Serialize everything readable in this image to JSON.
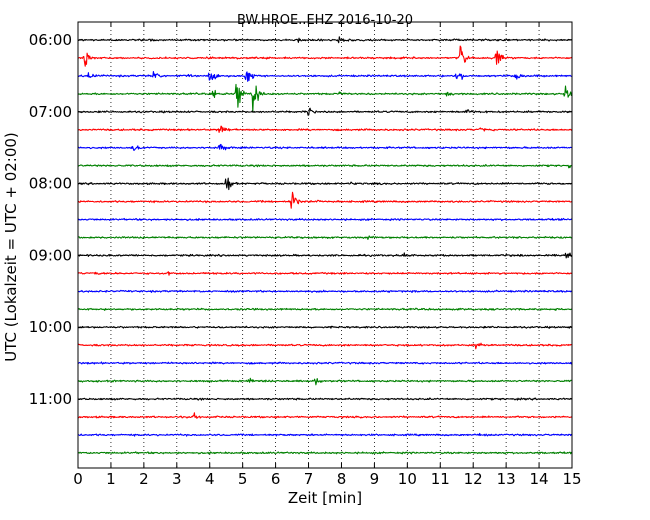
{
  "chart_data": {
    "type": "line",
    "title": "BW.HROE..EHZ 2016-10-20",
    "xlabel": "Zeit  [min]",
    "ylabel": "UTC (Lokalzeit = UTC + 02:00)",
    "xlim": [
      0,
      15
    ],
    "x_ticks": [
      "0",
      "1",
      "2",
      "3",
      "4",
      "5",
      "6",
      "7",
      "8",
      "9",
      "10",
      "11",
      "12",
      "13",
      "14",
      "15"
    ],
    "hour_labels": [
      {
        "label": "06:00",
        "trace_index": 0
      },
      {
        "label": "07:00",
        "trace_index": 4
      },
      {
        "label": "08:00",
        "trace_index": 8
      },
      {
        "label": "09:00",
        "trace_index": 12
      },
      {
        "label": "10:00",
        "trace_index": 16
      },
      {
        "label": "11:00",
        "trace_index": 20
      }
    ],
    "grid": "vertical-dotted",
    "colors": [
      "#000000",
      "#ff0000",
      "#0000ff",
      "#008000"
    ],
    "series": [
      {
        "start": "06:00",
        "color": "#000000",
        "events": [
          {
            "t": 6.7,
            "amp": 0.4
          },
          {
            "t": 7.9,
            "amp": 0.5
          }
        ]
      },
      {
        "start": "06:15",
        "color": "#ff0000",
        "events": [
          {
            "t": 0.2,
            "amp": 1.8
          },
          {
            "t": 11.6,
            "amp": 2.5
          },
          {
            "t": 12.7,
            "amp": 1.6
          }
        ]
      },
      {
        "start": "06:30",
        "color": "#0000ff",
        "events": [
          {
            "t": 0.3,
            "amp": 0.8
          },
          {
            "t": 2.3,
            "amp": 0.9
          },
          {
            "t": 3.3,
            "amp": 0.4
          },
          {
            "t": 4.0,
            "amp": 1.5
          },
          {
            "t": 5.1,
            "amp": 1.8
          },
          {
            "t": 11.5,
            "amp": 1.5
          },
          {
            "t": 13.3,
            "amp": 1.0
          }
        ]
      },
      {
        "start": "06:45",
        "color": "#008000",
        "events": [
          {
            "t": 4.1,
            "amp": 1.0
          },
          {
            "t": 4.8,
            "amp": 2.6
          },
          {
            "t": 5.3,
            "amp": 3.0
          },
          {
            "t": 7.9,
            "amp": 0.5
          },
          {
            "t": 11.2,
            "amp": 0.6
          },
          {
            "t": 14.8,
            "amp": 1.4
          }
        ]
      },
      {
        "start": "07:00",
        "color": "#000000",
        "events": [
          {
            "t": 7.0,
            "amp": 0.7
          },
          {
            "t": 11.8,
            "amp": 0.6
          }
        ]
      },
      {
        "start": "07:15",
        "color": "#ff0000",
        "events": [
          {
            "t": 4.3,
            "amp": 1.6
          },
          {
            "t": 12.2,
            "amp": 0.5
          }
        ]
      },
      {
        "start": "07:30",
        "color": "#0000ff",
        "events": [
          {
            "t": 1.7,
            "amp": 0.7
          },
          {
            "t": 4.3,
            "amp": 0.9
          }
        ]
      },
      {
        "start": "07:45",
        "color": "#008000",
        "events": [
          {
            "t": 14.9,
            "amp": 0.3
          }
        ]
      },
      {
        "start": "08:00",
        "color": "#000000",
        "events": [
          {
            "t": 4.5,
            "amp": 1.4
          },
          {
            "t": 8.3,
            "amp": 0.3
          }
        ]
      },
      {
        "start": "08:15",
        "color": "#ff0000",
        "events": [
          {
            "t": 6.5,
            "amp": 2.5
          },
          {
            "t": 7.3,
            "amp": 0.3
          }
        ]
      },
      {
        "start": "08:30",
        "color": "#0000ff",
        "events": []
      },
      {
        "start": "08:45",
        "color": "#008000",
        "events": [
          {
            "t": 8.8,
            "amp": 0.4
          }
        ]
      },
      {
        "start": "09:00",
        "color": "#000000",
        "events": [
          {
            "t": 9.9,
            "amp": 0.5
          },
          {
            "t": 12.9,
            "amp": 0.3
          },
          {
            "t": 14.8,
            "amp": 0.8
          }
        ]
      },
      {
        "start": "09:15",
        "color": "#ff0000",
        "events": [
          {
            "t": 0.5,
            "amp": 0.3
          },
          {
            "t": 2.7,
            "amp": 0.5
          }
        ]
      },
      {
        "start": "09:30",
        "color": "#0000ff",
        "events": []
      },
      {
        "start": "09:45",
        "color": "#008000",
        "events": []
      },
      {
        "start": "10:00",
        "color": "#000000",
        "events": [
          {
            "t": 14.8,
            "amp": 0.2
          }
        ]
      },
      {
        "start": "10:15",
        "color": "#ff0000",
        "events": [
          {
            "t": 12.1,
            "amp": 1.0
          }
        ]
      },
      {
        "start": "10:30",
        "color": "#0000ff",
        "events": [
          {
            "t": 3.1,
            "amp": 0.2
          }
        ]
      },
      {
        "start": "10:45",
        "color": "#008000",
        "events": [
          {
            "t": 5.2,
            "amp": 0.5
          },
          {
            "t": 7.2,
            "amp": 0.7
          }
        ]
      },
      {
        "start": "11:00",
        "color": "#000000",
        "events": []
      },
      {
        "start": "11:15",
        "color": "#ff0000",
        "events": [
          {
            "t": 3.5,
            "amp": 0.5
          }
        ]
      },
      {
        "start": "11:30",
        "color": "#0000ff",
        "events": [
          {
            "t": 12.2,
            "amp": 0.5
          }
        ]
      },
      {
        "start": "11:45",
        "color": "#008000",
        "events": []
      }
    ]
  }
}
